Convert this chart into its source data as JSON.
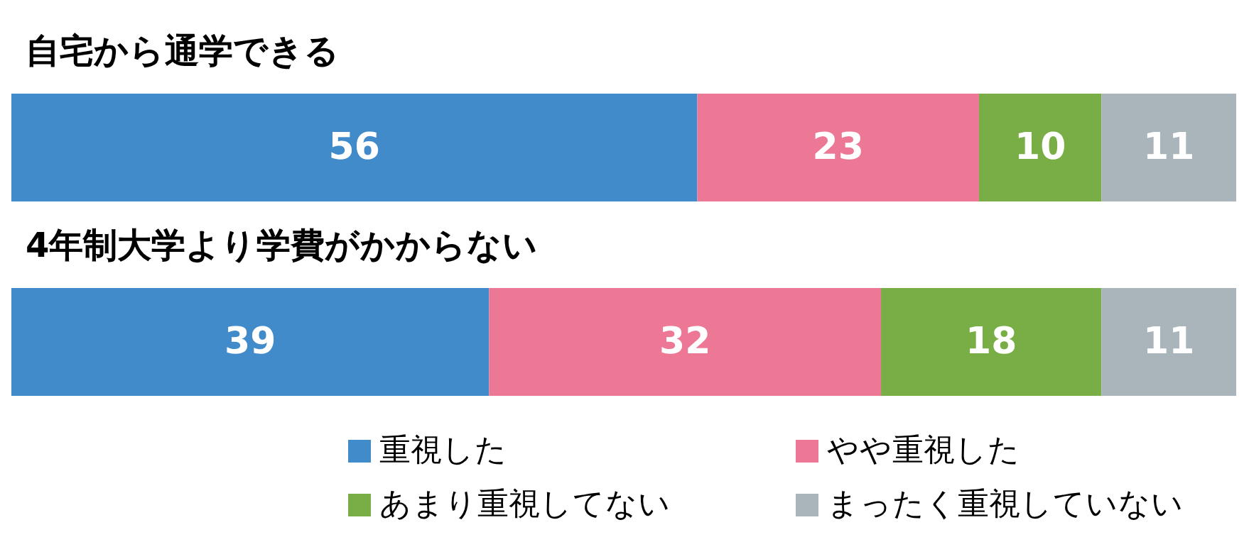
{
  "chart_data": {
    "type": "bar",
    "orientation": "horizontal",
    "stacked": true,
    "categories": [
      "自宅から通学できる",
      "4年制大学より学費がかからない"
    ],
    "xlim": [
      0,
      100
    ],
    "tick_labels": "y",
    "data_labels": true,
    "legend": "bottom",
    "series": [
      {
        "name": "重視した",
        "color": "#428bcb",
        "values": [
          56,
          39
        ]
      },
      {
        "name": "やや重視した",
        "color": "#ec7896",
        "values": [
          23,
          32
        ]
      },
      {
        "name": "あまり重視してない",
        "color": "#78ae45",
        "values": [
          10,
          18
        ]
      },
      {
        "name": "まったく重視していない",
        "color": "#aab4bb",
        "values": [
          11,
          11
        ]
      }
    ]
  }
}
